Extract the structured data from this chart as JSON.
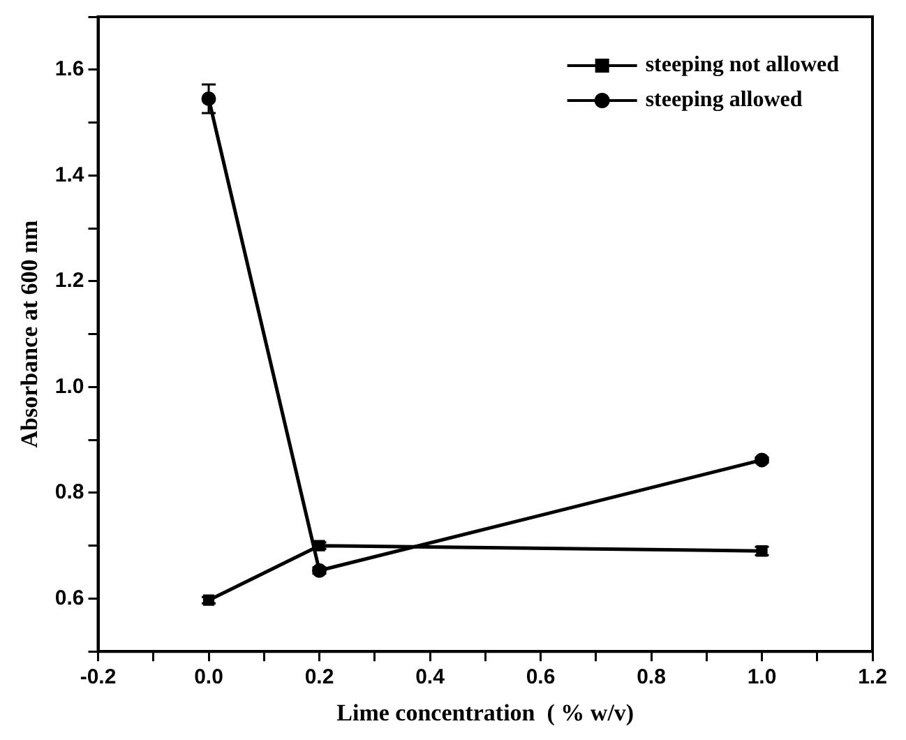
{
  "chart_data": {
    "type": "line",
    "xlabel": "Lime concentration  ( % w/v)",
    "ylabel": "Absorbance at 600 nm",
    "xlim": [
      -0.2,
      1.2
    ],
    "xticks": [
      -0.2,
      {
        "value": -0.1,
        "label": null
      },
      {
        "value": 0,
        "label": "0.0"
      },
      {
        "value": 0.1,
        "label": null
      },
      0.2,
      {
        "value": 0.3,
        "label": null
      },
      0.4,
      {
        "value": 0.5,
        "label": null
      },
      0.6,
      {
        "value": 0.7,
        "label": null
      },
      0.8,
      {
        "value": 0.9,
        "label": null
      },
      {
        "value": 1,
        "label": "1.0"
      },
      {
        "value": 1.1,
        "label": null
      },
      1.2
    ],
    "ylim": [
      0.5,
      1.7
    ],
    "yticks": [
      {
        "value": 0.5,
        "label": null
      },
      0.6,
      {
        "value": 0.7,
        "label": null
      },
      0.8,
      {
        "value": 0.9,
        "label": null
      },
      {
        "value": 1,
        "label": "1.0"
      },
      {
        "value": 1.1,
        "label": null
      },
      1.2,
      {
        "value": 1.3,
        "label": null
      },
      1.4,
      {
        "value": 1.5,
        "label": null
      },
      1.6,
      {
        "value": 1.7,
        "label": null
      }
    ],
    "grid": false,
    "legend": "top right",
    "line_style": "solid",
    "series": [
      {
        "name": "steeping not allowed",
        "color": "#000000",
        "marker": "square",
        "x": [
          0.0,
          0.2,
          1.0
        ],
        "values": [
          0.597,
          0.7,
          0.69
        ],
        "errors": [
          0.006,
          0.006,
          0.008
        ]
      },
      {
        "name": "steeping allowed",
        "color": "#000000",
        "marker": "circle",
        "x": [
          0.0,
          0.2,
          1.0
        ],
        "values": [
          1.545,
          0.653,
          0.862
        ],
        "errors": [
          0.027,
          0.006,
          0.005
        ]
      }
    ]
  }
}
